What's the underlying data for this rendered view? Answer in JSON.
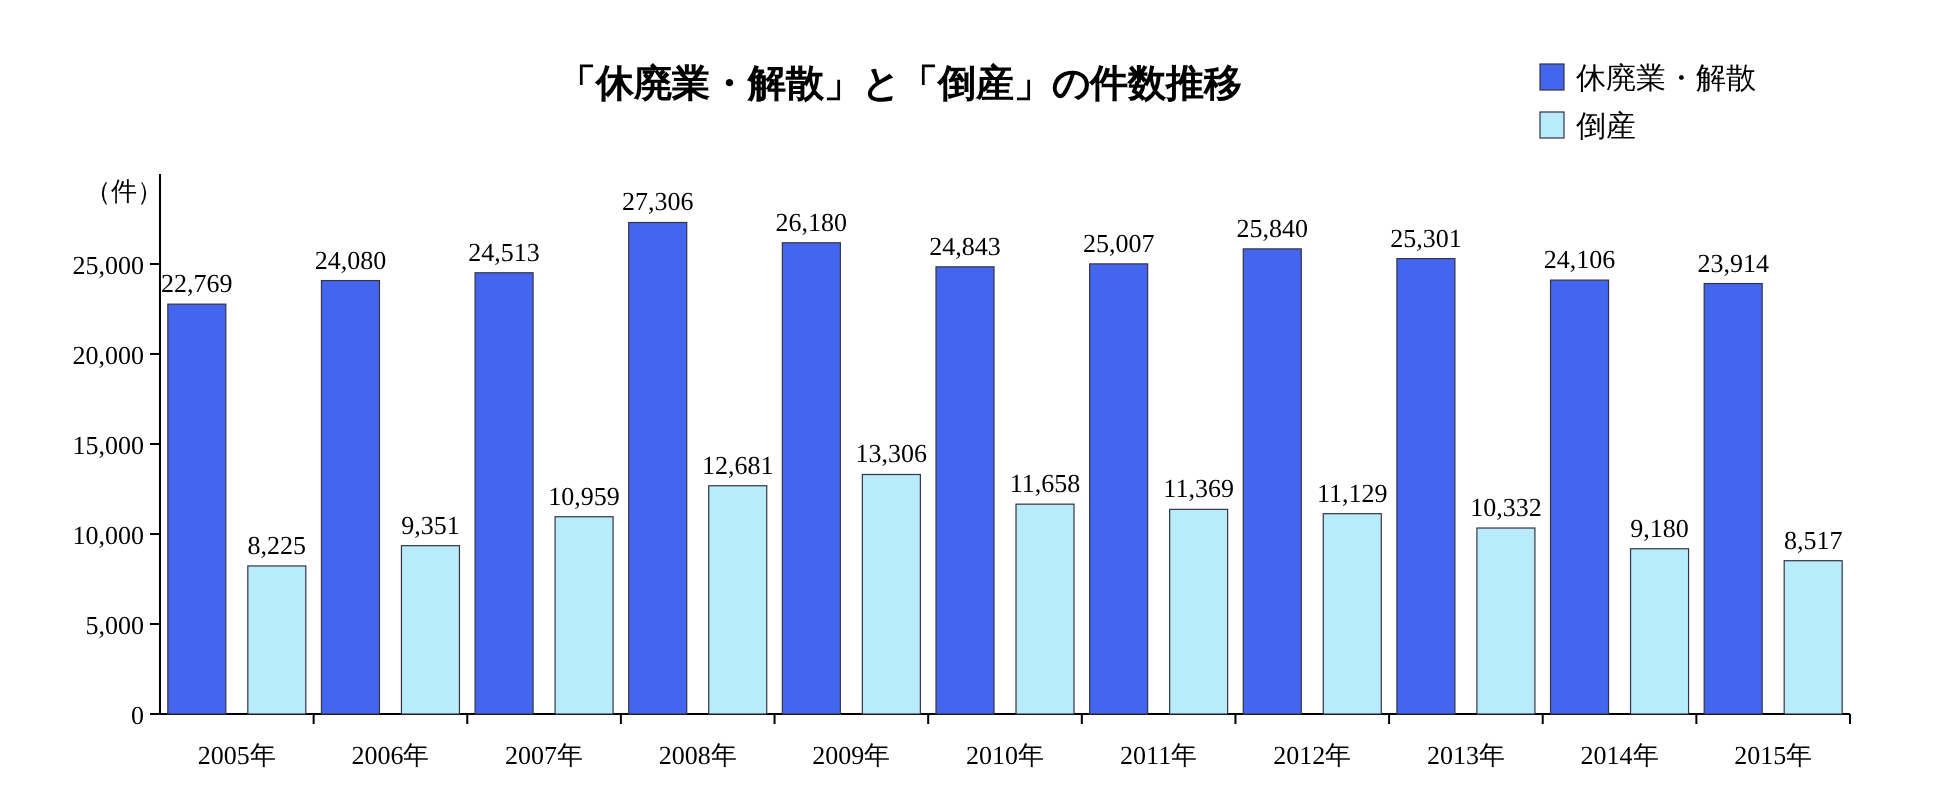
{
  "chart_data": {
    "type": "bar",
    "title": "「休廃業・解散」と「倒産」の件数推移",
    "ylabel": "（件）",
    "categories": [
      "2005年",
      "2006年",
      "2007年",
      "2008年",
      "2009年",
      "2010年",
      "2011年",
      "2012年",
      "2013年",
      "2014年",
      "2015年"
    ],
    "series": [
      {
        "name": "休廃業・解散",
        "color": "#4466ee",
        "values": [
          22769,
          24080,
          24513,
          27306,
          26180,
          24843,
          25007,
          25840,
          25301,
          24106,
          23914
        ],
        "value_labels": [
          "22,769",
          "24,080",
          "24,513",
          "27,306",
          "26,180",
          "24,843",
          "25,007",
          "25,840",
          "25,301",
          "24,106",
          "23,914"
        ]
      },
      {
        "name": "倒産",
        "color": "#b8ecfb",
        "values": [
          8225,
          9351,
          10959,
          12681,
          13306,
          11658,
          11369,
          11129,
          10332,
          9180,
          8517
        ],
        "value_labels": [
          "8,225",
          "9,351",
          "10,959",
          "12,681",
          "13,306",
          "11,658",
          "11,369",
          "11,129",
          "10,332",
          "9,180",
          "8,517"
        ]
      }
    ],
    "ylim": [
      0,
      30000
    ],
    "yticks": [
      {
        "value": 0,
        "label": "0"
      },
      {
        "value": 5000,
        "label": "5,000"
      },
      {
        "value": 10000,
        "label": "10,000"
      },
      {
        "value": 15000,
        "label": "15,000"
      },
      {
        "value": 20000,
        "label": "20,000"
      },
      {
        "value": 25000,
        "label": "25,000"
      }
    ],
    "legend": "top right",
    "grid": false
  }
}
